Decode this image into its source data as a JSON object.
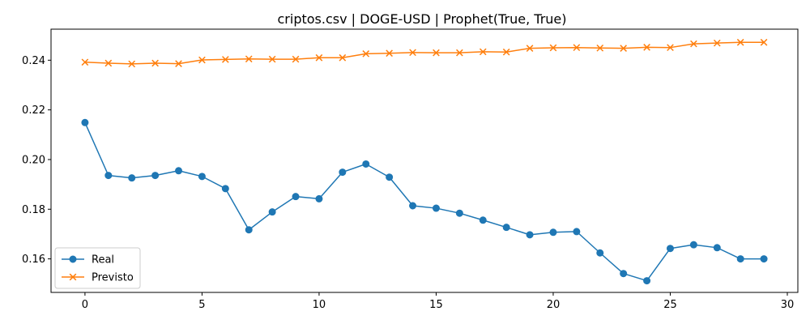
{
  "chart_data": {
    "type": "line",
    "title": "criptos.csv | DOGE-USD | Prophet(True, True)",
    "xlabel": "",
    "ylabel": "",
    "x": [
      0,
      1,
      2,
      3,
      4,
      5,
      6,
      7,
      8,
      9,
      10,
      11,
      12,
      13,
      14,
      15,
      16,
      17,
      18,
      19,
      20,
      21,
      22,
      23,
      24,
      25,
      26,
      27,
      28,
      29
    ],
    "xlim": [
      -1.45,
      30.45
    ],
    "ylim": [
      0.1465,
      0.2525
    ],
    "xticks": [
      0,
      5,
      10,
      15,
      20,
      25,
      30
    ],
    "xtick_labels": [
      "0",
      "5",
      "10",
      "15",
      "20",
      "25",
      "30"
    ],
    "yticks": [
      0.16,
      0.18,
      0.2,
      0.22,
      0.24
    ],
    "ytick_labels": [
      "0.16",
      "0.18",
      "0.20",
      "0.22",
      "0.24"
    ],
    "grid": false,
    "legend_position": "lower-left",
    "series": [
      {
        "name": "Real",
        "color": "#1f77b4",
        "marker": "circle",
        "values": [
          0.2149,
          0.1936,
          0.1926,
          0.1936,
          0.1955,
          0.1932,
          0.1883,
          0.1717,
          0.1789,
          0.1851,
          0.1842,
          0.1949,
          0.1982,
          0.1929,
          0.1814,
          0.1804,
          0.1784,
          0.1756,
          0.1727,
          0.1697,
          0.1707,
          0.171,
          0.1624,
          0.1541,
          0.1512,
          0.1642,
          0.1657,
          0.1645,
          0.16,
          0.16
        ]
      },
      {
        "name": "Previsto",
        "color": "#ff7f0e",
        "marker": "x",
        "values": [
          0.2392,
          0.2388,
          0.2385,
          0.2388,
          0.2386,
          0.2401,
          0.2403,
          0.2405,
          0.2404,
          0.2404,
          0.241,
          0.241,
          0.2426,
          0.2428,
          0.2431,
          0.243,
          0.243,
          0.2434,
          0.2433,
          0.2448,
          0.245,
          0.2451,
          0.2449,
          0.2448,
          0.2452,
          0.2451,
          0.2466,
          0.2469,
          0.2472,
          0.2472
        ]
      }
    ]
  }
}
